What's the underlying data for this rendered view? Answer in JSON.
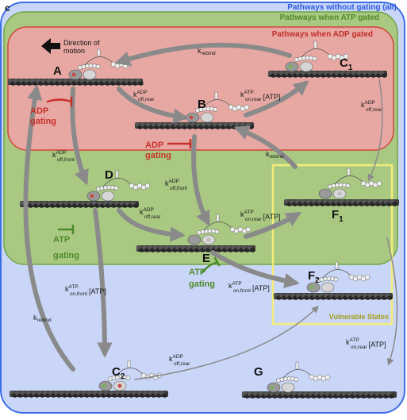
{
  "panel_letter": "c",
  "headers": {
    "all": "Pathways without gating (all)",
    "atp": "Pathways when ATP gated",
    "adp": "Pathways when ADP gated"
  },
  "direction": {
    "line1": "Direction of",
    "line2": "motion"
  },
  "states": {
    "A": "A",
    "B": "B",
    "C": "C",
    "C_sub": "1",
    "D": "D",
    "E": "E",
    "F": "F",
    "F1_sub": "1",
    "F2_sub": "2",
    "C2_sub": "2",
    "G": "G"
  },
  "gating": {
    "adp1": [
      "ADP",
      "gating"
    ],
    "adp2": [
      "ADP",
      "gating"
    ],
    "atp1": [
      "ATP",
      "gating"
    ],
    "atp2": [
      "ATP",
      "gating"
    ]
  },
  "vulnerable": "Vulnerable States",
  "rates": {
    "k": "k",
    "rebind": "rebind",
    "off_rear": "off,rear",
    "off_front": "off,front",
    "on_rear": "on,rear",
    "on_front": "on,front",
    "adp": "ADP",
    "atp": "ATP",
    "atp_bracket": "[ATP]"
  },
  "colors": {
    "all": "#3d6ee8",
    "all_fill": "#c9d6f7",
    "atp": "#6fa545",
    "atp_fill": "#a9c982",
    "adp": "#d0463e",
    "adp_fill": "#e7a8a3",
    "vulnerable": "#f4ec7a",
    "arrow": "#8a8a8a",
    "adp_gate": "#c8302a",
    "atp_gate": "#4d8a2a"
  }
}
